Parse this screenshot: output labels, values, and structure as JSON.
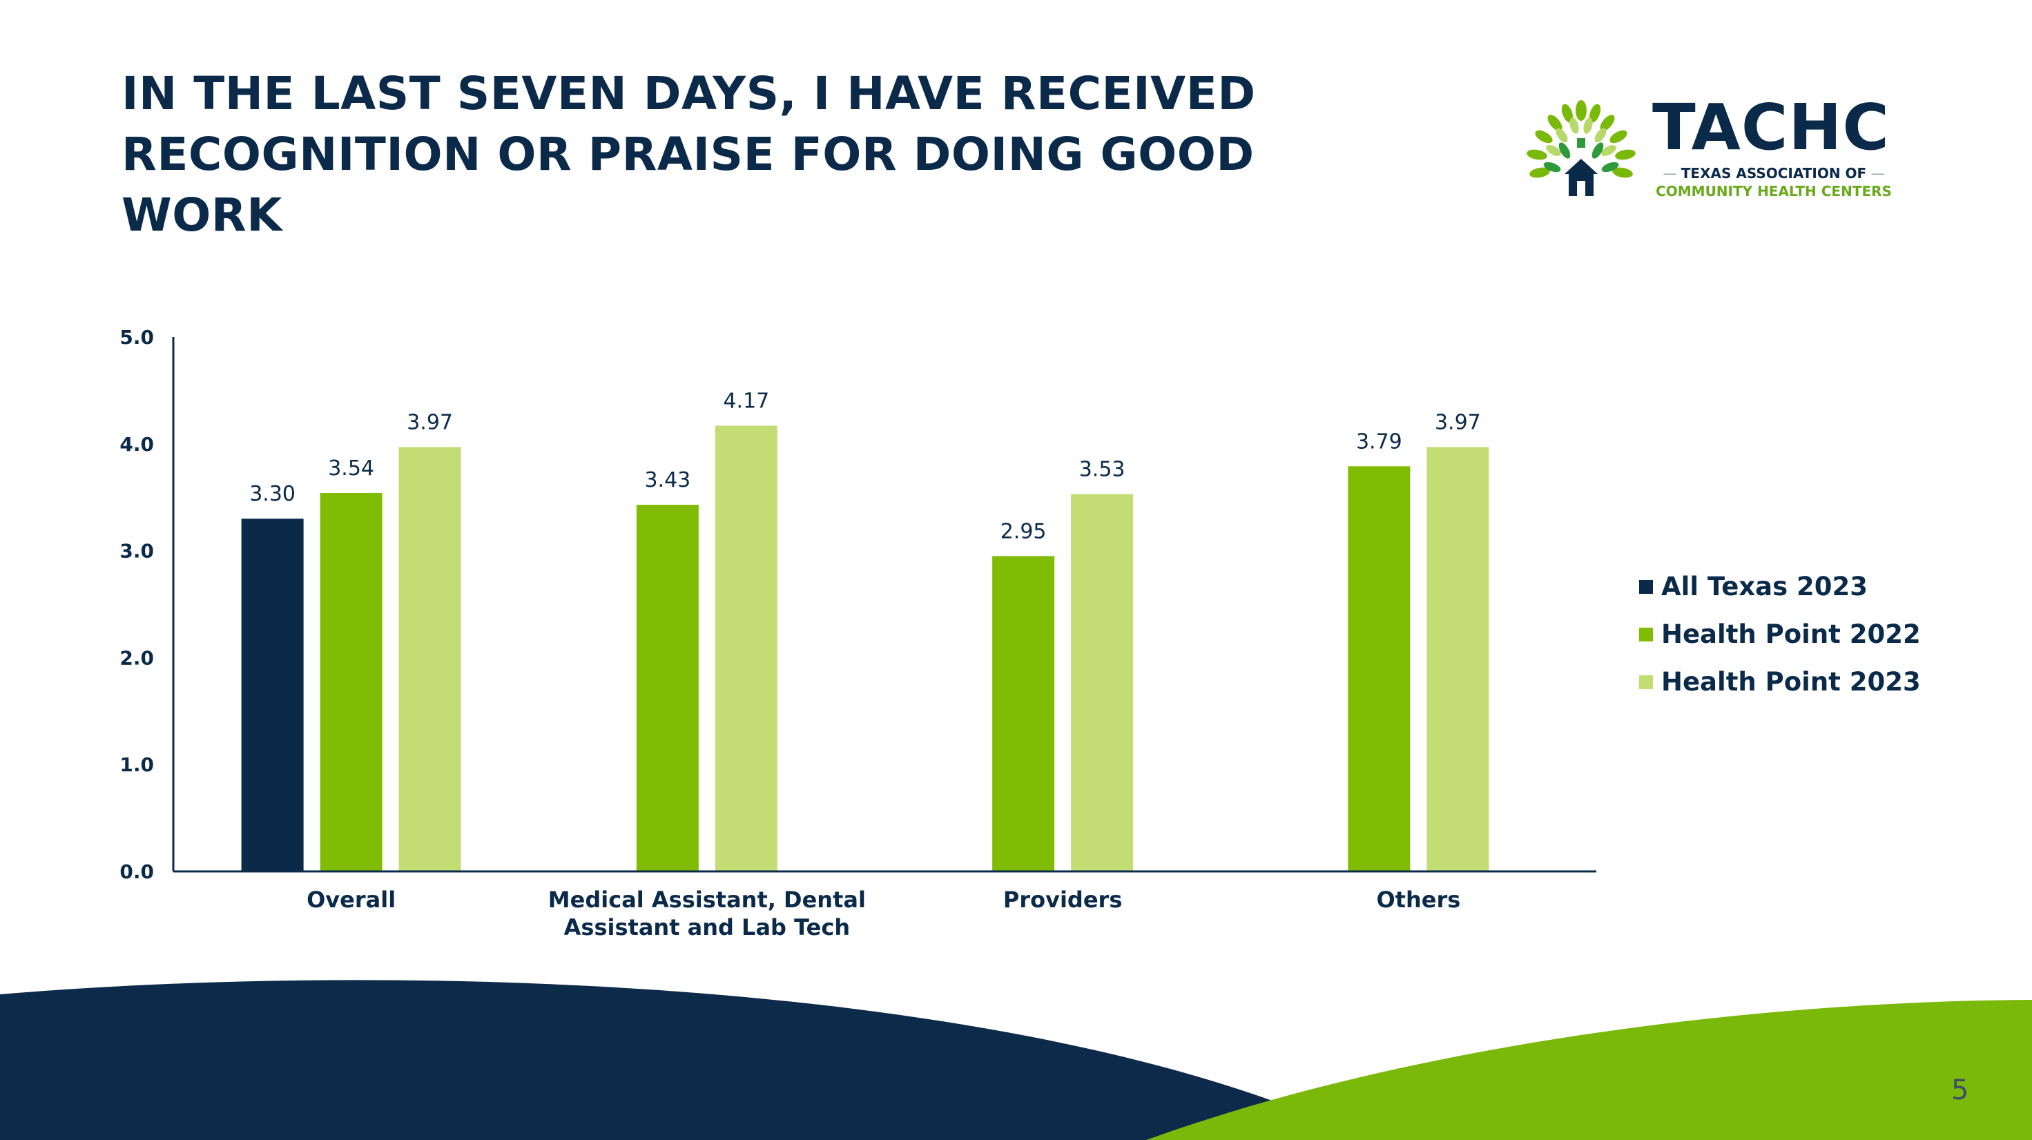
{
  "slide": {
    "title_lines": [
      "IN THE LAST SEVEN DAYS, I HAVE RECEIVED",
      "RECOGNITION OR PRAISE FOR DOING GOOD",
      "WORK"
    ],
    "page_number": "5"
  },
  "logo": {
    "wordmark": "TACHC",
    "line1": "TEXAS ASSOCIATION OF",
    "line2": "COMMUNITY HEALTH CENTERS"
  },
  "colors": {
    "navy": "#0b2a4a",
    "green": "#80bc04",
    "light_green": "#c3dc74",
    "footer_navy": "#0d2a4a",
    "footer_green": "#7ab80a"
  },
  "chart_data": {
    "type": "bar",
    "title": "IN THE LAST SEVEN DAYS, I HAVE RECEIVED RECOGNITION OR PRAISE FOR DOING GOOD WORK",
    "xlabel": "",
    "ylabel": "",
    "ylim": [
      0,
      5
    ],
    "yticks": [
      "0.0",
      "1.0",
      "2.0",
      "3.0",
      "4.0",
      "5.0"
    ],
    "grid": false,
    "legend_position": "right",
    "categories": [
      [
        "Overall"
      ],
      [
        "Medical Assistant, Dental",
        "Assistant and Lab Tech"
      ],
      [
        "Providers"
      ],
      [
        "Others"
      ]
    ],
    "series": [
      {
        "name": "All Texas 2023",
        "color": "#0b2a4a",
        "values": [
          3.3,
          null,
          null,
          null
        ],
        "labels": [
          "3.30",
          null,
          null,
          null
        ]
      },
      {
        "name": "Health Point 2022",
        "color": "#80bc04",
        "values": [
          3.54,
          3.43,
          2.95,
          3.79
        ],
        "labels": [
          "3.54",
          "3.43",
          "2.95",
          "3.79"
        ]
      },
      {
        "name": "Health Point 2023",
        "color": "#c3dc74",
        "values": [
          3.97,
          4.17,
          3.53,
          3.97
        ],
        "labels": [
          "3.97",
          "4.17",
          "3.53",
          "3.97"
        ]
      }
    ]
  }
}
